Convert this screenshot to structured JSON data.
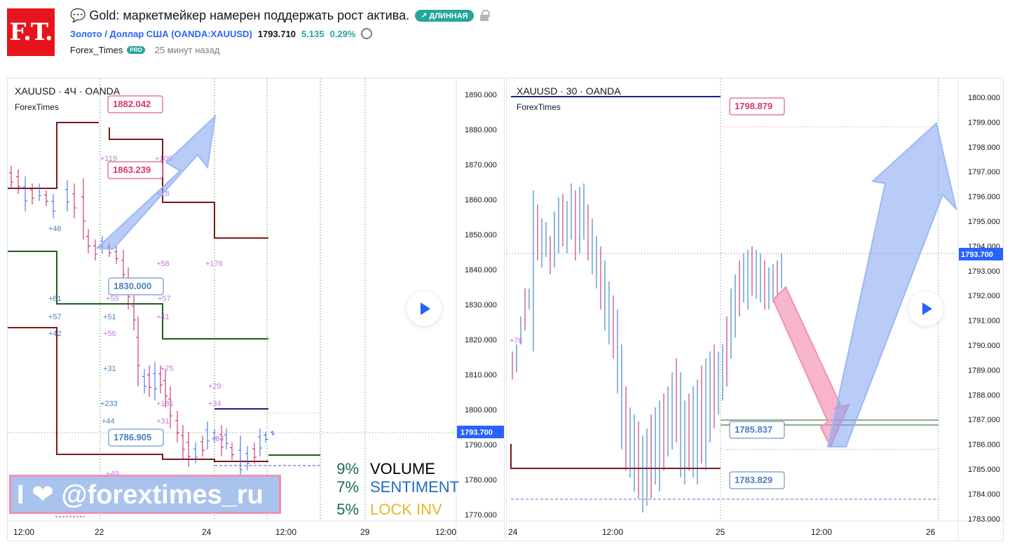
{
  "header": {
    "logo_text": "F.T.",
    "title": "💬 Gold: маркетмейкер намерен поддержать рост актива.",
    "direction_badge": "↗ ДЛИННАЯ",
    "symbol_link": "Золото / Доллар США (OANDA:XAUUSD)",
    "price": "1793.710",
    "change": "5.135",
    "change_pct": "0.29%",
    "author": "Forex_Times",
    "author_badge": "PRO",
    "time_ago": "25 минут назад",
    "icons": [
      "chat-bubble-icon",
      "lock-icon",
      "alarm-clock-icon"
    ]
  },
  "left_chart": {
    "title": "XAUUSD · 4Ч · OANDA",
    "watermark": "ForexTimes",
    "current_price": "1793.700",
    "y_ticks": [
      "1890.000",
      "1880.000",
      "1870.000",
      "1860.000",
      "1850.000",
      "1840.000",
      "1830.000",
      "1820.000",
      "1810.000",
      "1800.000",
      "1790.000",
      "1780.000",
      "1770.000"
    ],
    "x_ticks": [
      "12:00",
      "22",
      "24",
      "12:00",
      "29",
      "12:00"
    ],
    "level_labels": [
      "1882.042",
      "1863.239",
      "1830.000",
      "1786.905"
    ],
    "annotations": [
      "+119",
      "+100",
      "+18",
      "+46",
      "+58",
      "+176",
      "+61",
      "+59",
      "+57",
      "+57",
      "+51",
      "+41",
      "+42",
      "+56",
      "+31",
      "+75",
      "+29",
      "+233",
      "+181",
      "+34",
      "+44",
      "+31",
      "+84",
      "+49"
    ],
    "colors": {
      "resistance": "#7b1a1a",
      "support": "#1b5e20",
      "up": "#2962ff",
      "down": "#c2185b"
    }
  },
  "right_chart": {
    "title": "XAUUSD · 30 · OANDA",
    "watermark": "ForexTimes",
    "current_price": "1793.700",
    "y_ticks": [
      "1800.000",
      "1799.000",
      "1798.000",
      "1797.000",
      "1796.000",
      "1795.000",
      "1794.000",
      "1793.000",
      "1792.000",
      "1791.000",
      "1790.000",
      "1789.000",
      "1788.000",
      "1787.000",
      "1786.000",
      "1785.000",
      "1784.000",
      "1783.000"
    ],
    "x_ticks": [
      "24",
      "12:00",
      "25",
      "12:00",
      "26"
    ],
    "level_labels": [
      "1798.879",
      "1785.837",
      "1783.829"
    ],
    "annotation": "+76"
  },
  "banner": {
    "text": "I ❤ @forextimes_ru"
  },
  "legend": [
    {
      "pct": "9%",
      "label": "VOLUME",
      "color": "#000000"
    },
    {
      "pct": "7%",
      "label": "SENTIMENT",
      "color": "#1e6fbf"
    },
    {
      "pct": "5%",
      "label": "LOCK INV",
      "color": "#e8b62e"
    }
  ]
}
